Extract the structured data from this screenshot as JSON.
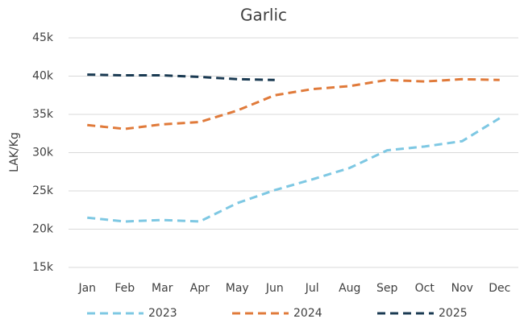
{
  "chart_data": {
    "type": "line",
    "title": "Garlic",
    "y_label": "LAK/Kg",
    "categories": [
      "Jan",
      "Feb",
      "Mar",
      "Apr",
      "May",
      "Jun",
      "Jul",
      "Aug",
      "Sep",
      "Oct",
      "Nov",
      "Dec"
    ],
    "series": [
      {
        "name": "2023",
        "color": "#7ec8e3",
        "values": [
          21500,
          21000,
          21200,
          21000,
          23400,
          25100,
          26500,
          28000,
          30300,
          30800,
          31500,
          34500
        ]
      },
      {
        "name": "2024",
        "color": "#e07a3a",
        "values": [
          33600,
          33100,
          33700,
          34000,
          35500,
          37500,
          38300,
          38700,
          39500,
          39300,
          39600,
          39500
        ]
      },
      {
        "name": "2025",
        "color": "#1a3a52",
        "values": [
          40200,
          40100,
          40100,
          39900,
          39600,
          39500,
          null,
          null,
          null,
          null,
          null,
          null
        ]
      }
    ],
    "ylim": [
      15000,
      45000
    ],
    "yticks": [
      {
        "value": 15000,
        "label": "15k"
      },
      {
        "value": 20000,
        "label": "20k"
      },
      {
        "value": 25000,
        "label": "25k"
      },
      {
        "value": 30000,
        "label": "30k"
      },
      {
        "value": 35000,
        "label": "35k"
      },
      {
        "value": 40000,
        "label": "40k"
      },
      {
        "value": 45000,
        "label": "45k"
      }
    ],
    "grid": true,
    "legend": "bottom",
    "dashed": true
  }
}
